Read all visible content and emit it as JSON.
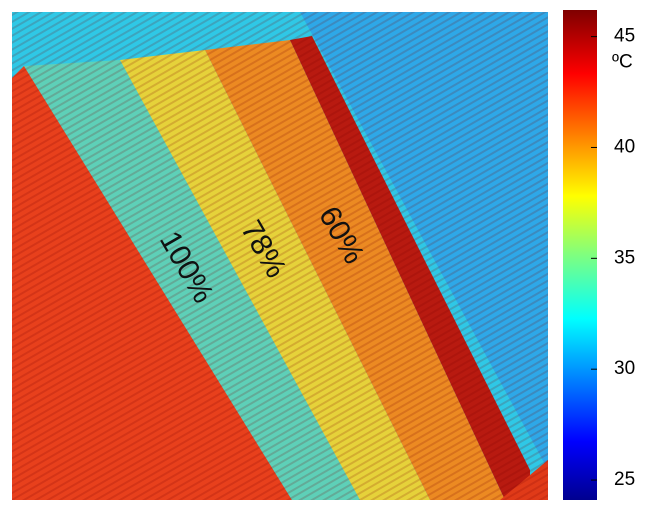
{
  "image": {
    "labels": [
      "100%",
      "78%",
      "60%"
    ]
  },
  "colorbar": {
    "unit": "ºC",
    "lim": [
      24.1,
      46.2
    ],
    "ticks": [
      25,
      30,
      35,
      40,
      45
    ]
  }
}
